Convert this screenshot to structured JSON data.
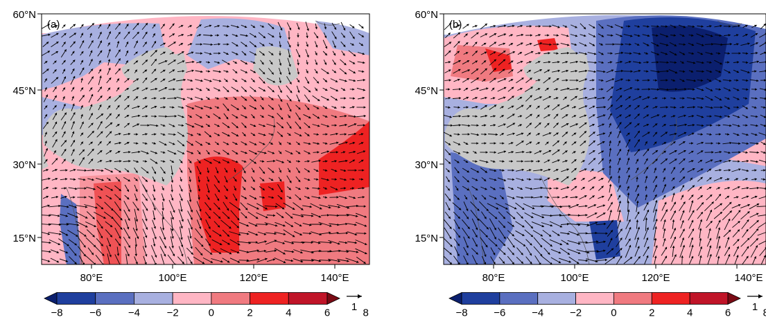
{
  "panels": [
    {
      "label": "(a)",
      "y_ticks": [
        "60°N",
        "45°N",
        "30°N",
        "15°N"
      ],
      "x_ticks": [
        "80°E",
        "100°E",
        "120°E",
        "140°E"
      ],
      "pattern": "warm"
    },
    {
      "label": "(b)",
      "y_ticks": [
        "60°N",
        "45°N",
        "30°N",
        "15°N"
      ],
      "x_ticks": [
        "80°E",
        "100°E",
        "120°E",
        "140°E"
      ],
      "pattern": "cool"
    }
  ],
  "colorbar": {
    "ticks": [
      "−8",
      "−6",
      "−4",
      "−2",
      "0",
      "2",
      "4",
      "6",
      "8"
    ],
    "colors": [
      "#0b1f6e",
      "#1f3f9e",
      "#5a6fc0",
      "#a8b0e0",
      "#ffb6c4",
      "#f07a80",
      "#ee2222",
      "#c01428",
      "#7a0a14"
    ]
  },
  "vector_key": {
    "value": "1"
  },
  "colors": {
    "land": "#c8c8c8",
    "arrow": "#000000",
    "frame": "#000000"
  }
}
